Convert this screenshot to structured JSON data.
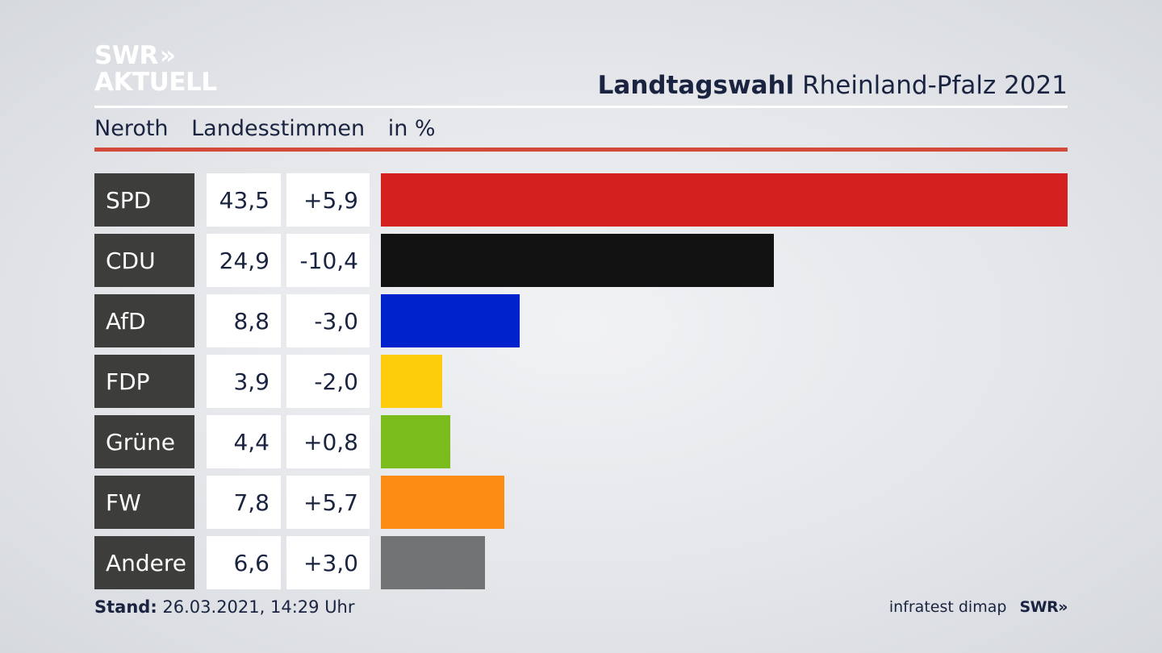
{
  "logo": {
    "line1": "SWR",
    "arrows": "»",
    "line2": "AKTUELL"
  },
  "header": {
    "title_bold": "Landtagswahl",
    "title_rest": "Rheinland-Pfalz 2021"
  },
  "subheader": {
    "place": "Neroth",
    "vote_type": "Landesstimmen",
    "unit": "in %"
  },
  "footer": {
    "stand_label": "Stand:",
    "stand_value": "26.03.2021, 14:29 Uhr",
    "source": "infratest dimap",
    "brand": "SWR»"
  },
  "chart_data": {
    "type": "bar",
    "orientation": "horizontal",
    "categories": [
      "SPD",
      "CDU",
      "AfD",
      "FDP",
      "Grüne",
      "FW",
      "Andere"
    ],
    "values": [
      43.5,
      24.9,
      8.8,
      3.9,
      4.4,
      7.8,
      6.6
    ],
    "value_labels": [
      "43,5",
      "24,9",
      "8,8",
      "3,9",
      "4,4",
      "7,8",
      "6,6"
    ],
    "diff_labels": [
      "+5,9",
      "-10,4",
      "-3,0",
      "-2,0",
      "+0,8",
      "+5,7",
      "+3,0"
    ],
    "diffs": [
      5.9,
      -10.4,
      -3.0,
      -2.0,
      0.8,
      5.7,
      3.0
    ],
    "colors": [
      "#d52020",
      "#121212",
      "#0022cc",
      "#fdcc0a",
      "#79bc1c",
      "#fd8c15",
      "#727374"
    ],
    "xlim": [
      0,
      43.5
    ],
    "grid": false
  }
}
